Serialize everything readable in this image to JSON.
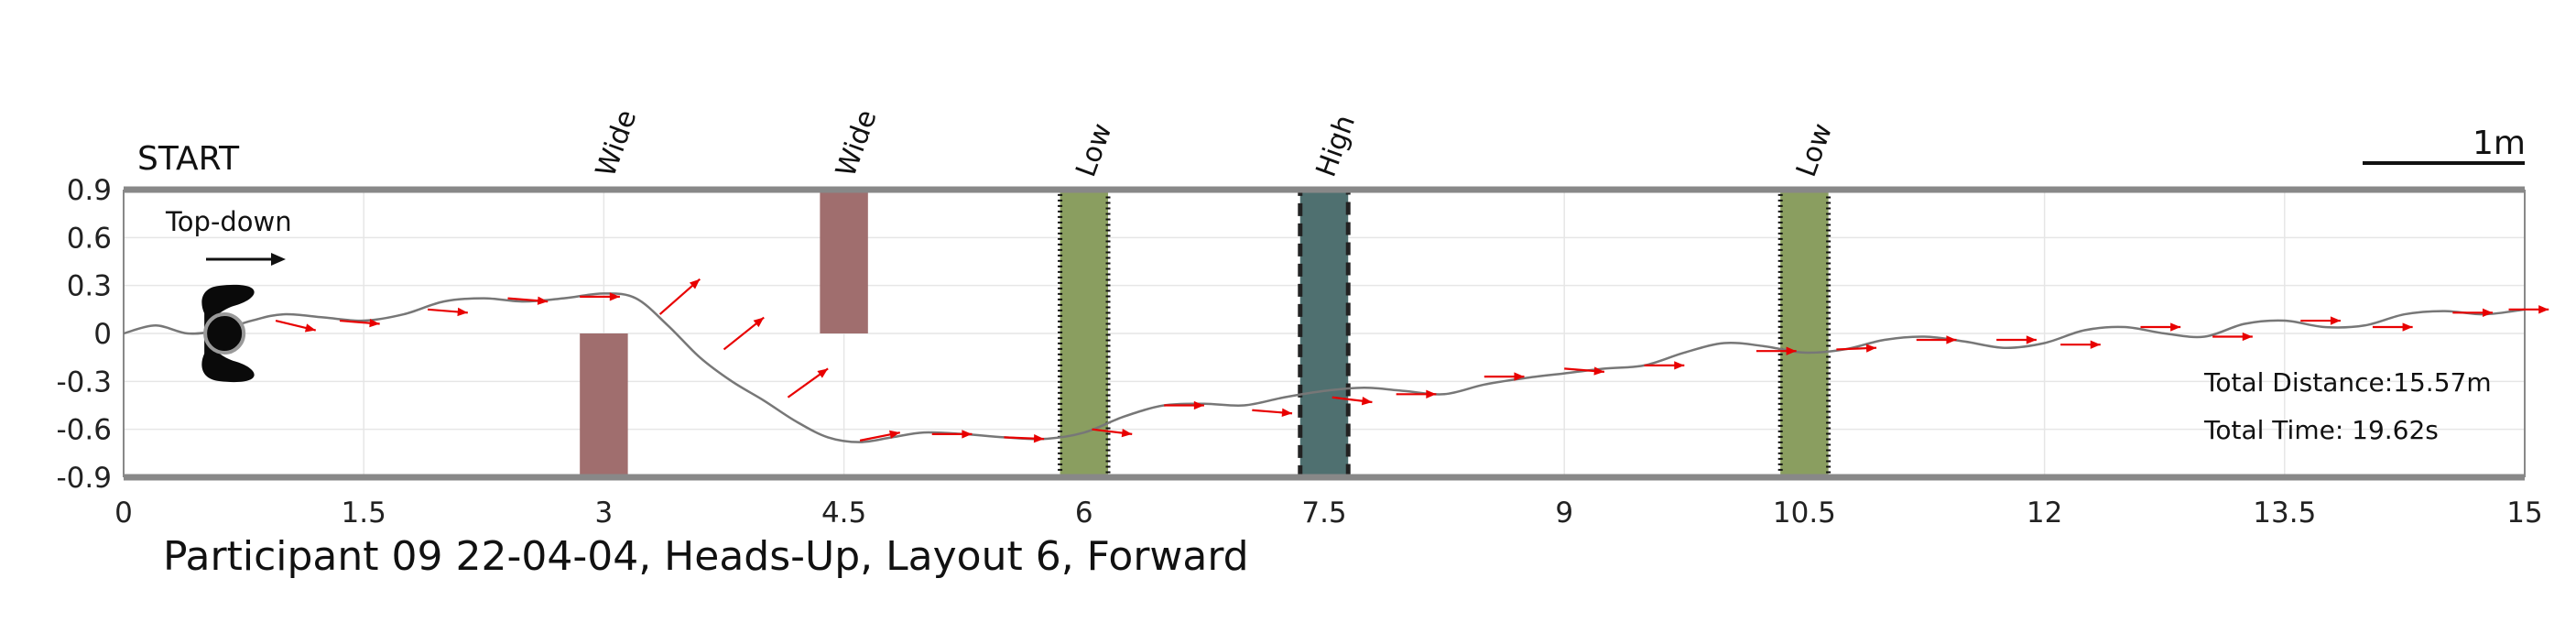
{
  "chart_data": {
    "type": "line",
    "title": "Participant 09 22-04-04, Heads-Up, Layout 6, Forward",
    "start_label": "START",
    "view_label": "Top-down",
    "scale_label": "1m",
    "scale_length_m": 1,
    "xlim": [
      0,
      15
    ],
    "ylim": [
      -0.9,
      0.9
    ],
    "xticks": [
      0,
      1.5,
      3,
      4.5,
      6,
      7.5,
      9,
      10.5,
      12,
      13.5,
      15
    ],
    "xtick_labels": [
      "0",
      "1.5",
      "3",
      "4.5",
      "6",
      "7.5",
      "9",
      "10.5",
      "12",
      "13.5",
      "15"
    ],
    "yticks": [
      0.9,
      0.6,
      0.3,
      0,
      -0.3,
      -0.6,
      -0.9
    ],
    "ytick_labels": [
      "0.9",
      "0.6",
      "0.3",
      "0",
      "-0.3",
      "-0.6",
      "-0.9"
    ],
    "grid": true,
    "obstacles": [
      {
        "label": "Wide",
        "x": [
          2.85,
          3.15
        ],
        "y": [
          -0.9,
          0.0
        ],
        "style": "wide",
        "color": "#a06e6e"
      },
      {
        "label": "Wide",
        "x": [
          4.35,
          4.65
        ],
        "y": [
          0.0,
          0.9
        ],
        "style": "wide",
        "color": "#a06e6e"
      },
      {
        "label": "Low",
        "x": [
          5.85,
          6.15
        ],
        "y": [
          -0.9,
          0.9
        ],
        "style": "low",
        "color": "#8a9e60"
      },
      {
        "label": "High",
        "x": [
          7.35,
          7.65
        ],
        "y": [
          -0.9,
          0.9
        ],
        "style": "high",
        "color": "#4f7070"
      },
      {
        "label": "Low",
        "x": [
          10.35,
          10.65
        ],
        "y": [
          -0.9,
          0.9
        ],
        "style": "low",
        "color": "#8a9e60"
      }
    ],
    "series": [
      {
        "values_x": [
          0,
          0.2,
          0.4,
          0.6,
          0.8,
          1.0,
          1.25,
          1.5,
          1.75,
          2.0,
          2.25,
          2.5,
          2.75,
          3.0,
          3.2,
          3.4,
          3.6,
          3.8,
          4.0,
          4.2,
          4.4,
          4.6,
          4.8,
          5.0,
          5.25,
          5.5,
          5.75,
          6.0,
          6.25,
          6.5,
          6.75,
          7.0,
          7.25,
          7.5,
          7.75,
          8.0,
          8.25,
          8.5,
          8.75,
          9.0,
          9.25,
          9.5,
          9.75,
          10.0,
          10.25,
          10.5,
          10.75,
          11.0,
          11.25,
          11.5,
          11.75,
          12.0,
          12.25,
          12.5,
          12.75,
          13.0,
          13.25,
          13.5,
          13.75,
          14.0,
          14.25,
          14.5,
          14.75,
          15.0
        ],
        "values_y": [
          0.0,
          0.05,
          0.0,
          0.02,
          0.08,
          0.12,
          0.1,
          0.08,
          0.12,
          0.2,
          0.22,
          0.2,
          0.22,
          0.25,
          0.22,
          0.05,
          -0.15,
          -0.3,
          -0.42,
          -0.55,
          -0.65,
          -0.68,
          -0.65,
          -0.62,
          -0.63,
          -0.65,
          -0.66,
          -0.62,
          -0.52,
          -0.45,
          -0.44,
          -0.45,
          -0.4,
          -0.36,
          -0.34,
          -0.36,
          -0.38,
          -0.32,
          -0.28,
          -0.25,
          -0.22,
          -0.2,
          -0.12,
          -0.06,
          -0.08,
          -0.12,
          -0.1,
          -0.04,
          -0.02,
          -0.05,
          -0.09,
          -0.06,
          0.02,
          0.04,
          0.0,
          -0.02,
          0.06,
          0.08,
          0.04,
          0.05,
          0.12,
          0.14,
          0.12,
          0.15
        ]
      }
    ],
    "direction_arrows": [
      {
        "x": 0.95,
        "y": 0.08,
        "dx": 0.25,
        "dy": -0.06
      },
      {
        "x": 1.35,
        "y": 0.08,
        "dx": 0.25,
        "dy": -0.02
      },
      {
        "x": 1.9,
        "y": 0.15,
        "dx": 0.25,
        "dy": -0.02
      },
      {
        "x": 2.4,
        "y": 0.22,
        "dx": 0.25,
        "dy": -0.02
      },
      {
        "x": 2.85,
        "y": 0.23,
        "dx": 0.25,
        "dy": 0.0
      },
      {
        "x": 3.35,
        "y": 0.12,
        "dx": 0.25,
        "dy": 0.22
      },
      {
        "x": 3.75,
        "y": -0.1,
        "dx": 0.25,
        "dy": 0.2
      },
      {
        "x": 4.15,
        "y": -0.4,
        "dx": 0.25,
        "dy": 0.18
      },
      {
        "x": 4.6,
        "y": -0.67,
        "dx": 0.25,
        "dy": 0.05
      },
      {
        "x": 5.05,
        "y": -0.63,
        "dx": 0.25,
        "dy": 0.0
      },
      {
        "x": 5.5,
        "y": -0.65,
        "dx": 0.25,
        "dy": -0.01
      },
      {
        "x": 6.05,
        "y": -0.6,
        "dx": 0.25,
        "dy": -0.03
      },
      {
        "x": 6.5,
        "y": -0.45,
        "dx": 0.25,
        "dy": 0.0
      },
      {
        "x": 7.05,
        "y": -0.48,
        "dx": 0.25,
        "dy": -0.02
      },
      {
        "x": 7.55,
        "y": -0.4,
        "dx": 0.25,
        "dy": -0.03
      },
      {
        "x": 7.95,
        "y": -0.38,
        "dx": 0.25,
        "dy": 0.0
      },
      {
        "x": 8.5,
        "y": -0.27,
        "dx": 0.25,
        "dy": 0.0
      },
      {
        "x": 9.0,
        "y": -0.22,
        "dx": 0.25,
        "dy": -0.02
      },
      {
        "x": 9.5,
        "y": -0.2,
        "dx": 0.25,
        "dy": 0.0
      },
      {
        "x": 10.2,
        "y": -0.11,
        "dx": 0.25,
        "dy": 0.0
      },
      {
        "x": 10.7,
        "y": -0.1,
        "dx": 0.25,
        "dy": 0.01
      },
      {
        "x": 11.2,
        "y": -0.04,
        "dx": 0.25,
        "dy": 0.0
      },
      {
        "x": 11.7,
        "y": -0.04,
        "dx": 0.25,
        "dy": 0.0
      },
      {
        "x": 12.1,
        "y": -0.07,
        "dx": 0.25,
        "dy": 0.0
      },
      {
        "x": 12.6,
        "y": 0.04,
        "dx": 0.25,
        "dy": 0.0
      },
      {
        "x": 13.05,
        "y": -0.02,
        "dx": 0.25,
        "dy": 0.0
      },
      {
        "x": 13.6,
        "y": 0.08,
        "dx": 0.25,
        "dy": 0.0
      },
      {
        "x": 14.05,
        "y": 0.04,
        "dx": 0.25,
        "dy": 0.0
      },
      {
        "x": 14.55,
        "y": 0.13,
        "dx": 0.25,
        "dy": 0.0
      },
      {
        "x": 14.9,
        "y": 0.15,
        "dx": 0.25,
        "dy": 0.0
      }
    ],
    "walker_position": {
      "x": 0.63,
      "y": 0.0
    },
    "annotations": [
      {
        "text": "Total Distance:15.57m"
      },
      {
        "text": "Total Time: 19.62s"
      }
    ],
    "colors": {
      "path": "#777777",
      "arrows": "#e80000",
      "border": "#888888",
      "grid": "#e6e6e6"
    }
  }
}
